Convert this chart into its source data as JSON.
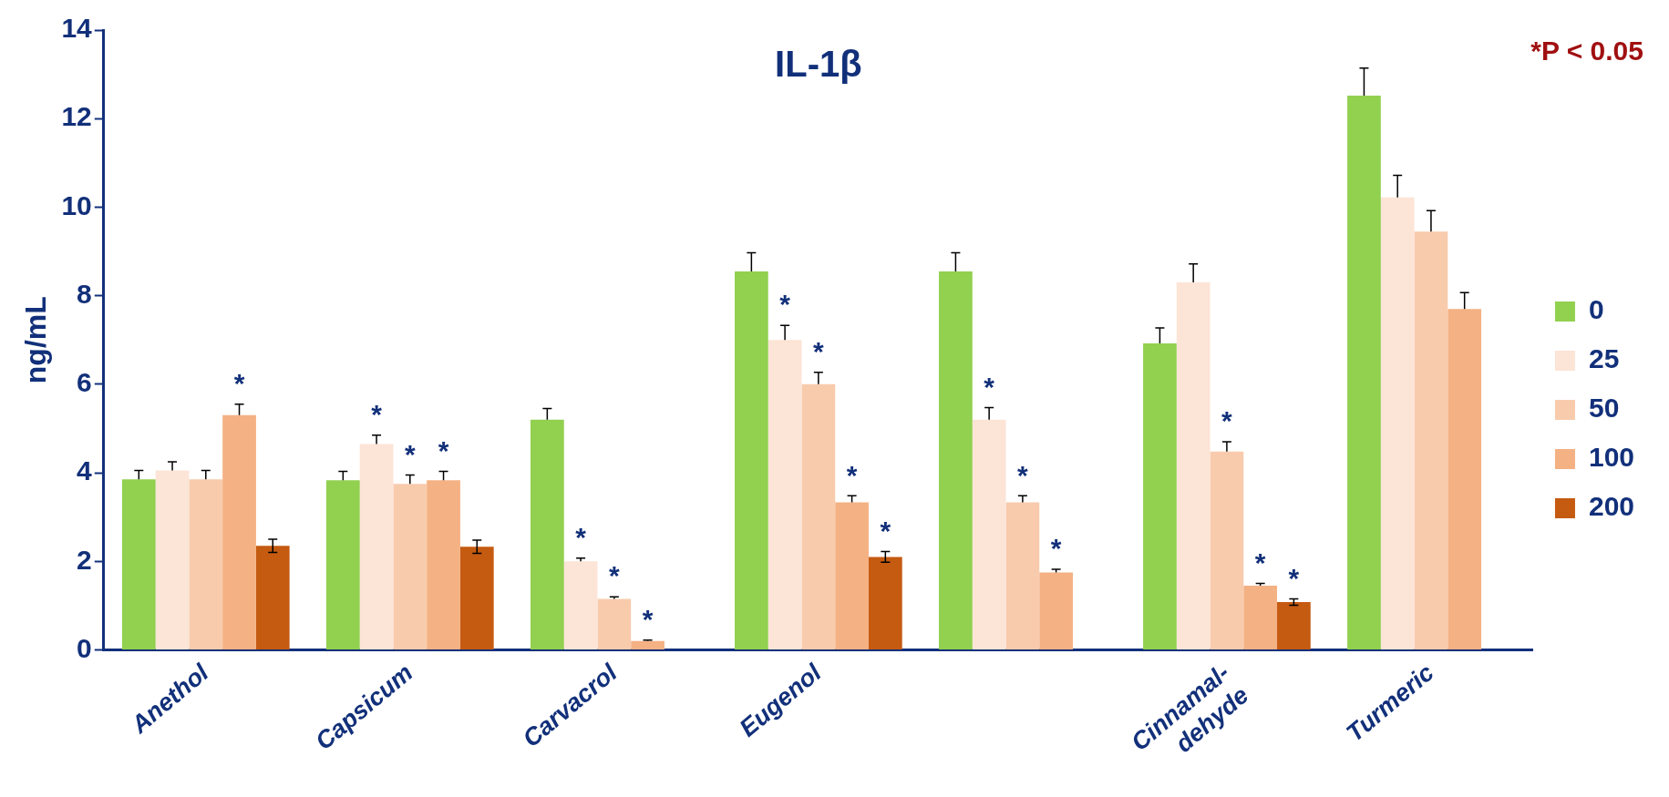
{
  "chart_data": {
    "type": "bar",
    "title": "IL-1β",
    "ylabel": "ng/mL",
    "categories": [
      "Anethol",
      "Capsicum",
      "Carvacrol",
      "Eugenol",
      null,
      "Cinnamal-\ndehyde",
      "Turmeric"
    ],
    "series": [
      {
        "name": "0",
        "color": "#92d050",
        "values": [
          3.85,
          3.83,
          5.2,
          8.55,
          8.55,
          6.92,
          12.52
        ],
        "errors": [
          [
            3.85,
            4.05
          ],
          [
            3.83,
            4.03
          ],
          [
            5.2,
            5.45
          ],
          [
            8.55,
            8.97
          ],
          [
            8.55,
            8.97
          ],
          [
            6.92,
            7.27
          ],
          [
            12.52,
            13.14
          ]
        ],
        "value_labels": [
          null,
          null,
          null,
          null,
          null,
          null,
          null
        ]
      },
      {
        "name": "25",
        "color": "#fce4d6",
        "values": [
          4.05,
          4.65,
          2.0,
          7.0,
          5.2,
          8.3,
          10.22
        ],
        "errors": [
          [
            4.05,
            4.25
          ],
          [
            4.65,
            4.85
          ],
          [
            2.0,
            2.07
          ],
          [
            7.0,
            7.33
          ],
          [
            5.2,
            5.47
          ],
          [
            8.3,
            8.72
          ],
          [
            10.22,
            10.72
          ]
        ],
        "value_labels": [
          null,
          "*",
          "*",
          "*",
          "*",
          null,
          null
        ]
      },
      {
        "name": "50",
        "color": "#f8cbad",
        "values": [
          3.85,
          3.75,
          1.15,
          6.0,
          3.33,
          4.48,
          9.45
        ],
        "errors": [
          [
            3.85,
            4.05
          ],
          [
            3.75,
            3.95
          ],
          [
            1.15,
            1.2
          ],
          [
            6.0,
            6.27
          ],
          [
            3.33,
            3.48
          ],
          [
            4.48,
            4.7
          ],
          [
            9.45,
            9.92
          ]
        ],
        "value_labels": [
          null,
          "*",
          "*",
          "*",
          "*",
          "*",
          null
        ]
      },
      {
        "name": "100",
        "color": "#f4b183",
        "values": [
          5.3,
          3.83,
          0.2,
          3.33,
          1.75,
          1.45,
          7.7
        ],
        "errors": [
          [
            5.3,
            5.55
          ],
          [
            3.83,
            4.03
          ],
          [
            0.2,
            0.22
          ],
          [
            3.33,
            3.48
          ],
          [
            1.75,
            1.82
          ],
          [
            1.45,
            1.5
          ],
          [
            7.7,
            8.07
          ]
        ],
        "value_labels": [
          "*",
          "*",
          "*",
          "*",
          "*",
          "*",
          null
        ]
      },
      {
        "name": "200",
        "color": "#c55a11",
        "values": [
          2.35,
          2.33,
          null,
          2.1,
          null,
          1.08,
          null
        ],
        "errors": [
          0.15,
          0.15,
          null,
          0.12,
          null,
          0.07,
          null
        ],
        "value_labels": [
          null,
          null,
          null,
          "*",
          null,
          "*",
          null
        ]
      }
    ],
    "ylim": [
      0,
      14
    ],
    "yticks": [
      0,
      2,
      4,
      6,
      8,
      10,
      12,
      14
    ],
    "grid": false,
    "legend": "right",
    "annotations": [
      "*P < 0.05"
    ]
  }
}
